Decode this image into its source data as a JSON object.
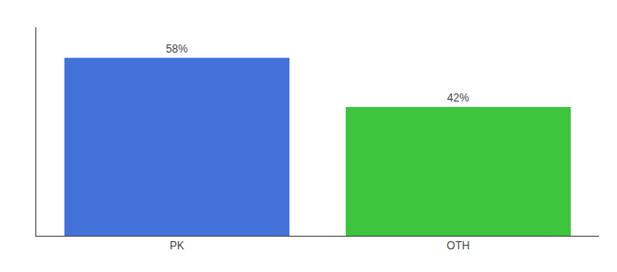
{
  "chart_data": {
    "type": "bar",
    "categories": [
      "PK",
      "OTH"
    ],
    "values": [
      58,
      42
    ],
    "value_labels": [
      "58%",
      "42%"
    ],
    "data_labels": true,
    "colors": [
      "#4472db",
      "#3dc63d"
    ],
    "ylim": [
      0,
      68
    ],
    "yticks": [],
    "tick_labels": "x",
    "grid": false
  }
}
